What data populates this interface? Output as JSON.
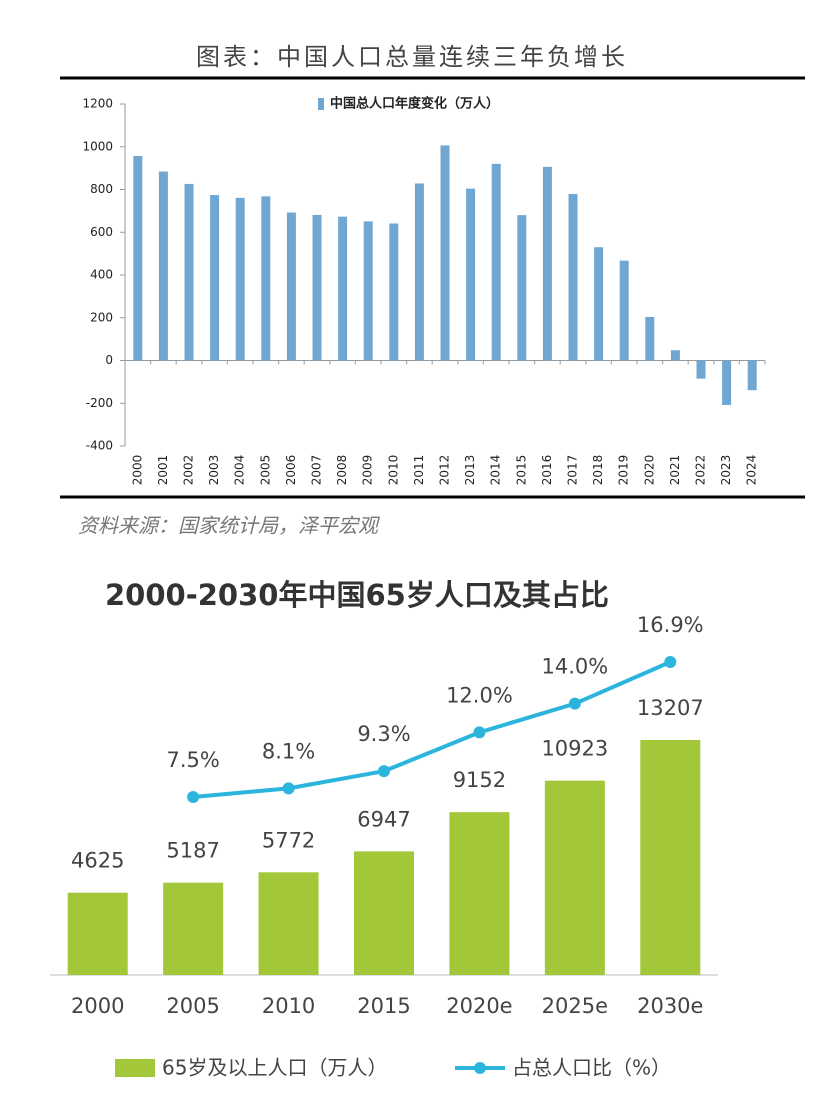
{
  "chart_data": [
    {
      "type": "bar",
      "title": "图表：中国人口总量连续三年负增长",
      "source": "资料来源：国家统计局，泽平宏观",
      "categories": [
        "2000",
        "2001",
        "2002",
        "2003",
        "2004",
        "2005",
        "2006",
        "2007",
        "2008",
        "2009",
        "2010",
        "2011",
        "2012",
        "2013",
        "2014",
        "2015",
        "2016",
        "2017",
        "2018",
        "2019",
        "2020",
        "2021",
        "2022",
        "2023",
        "2024"
      ],
      "series": [
        {
          "name": "中国总人口年度变化（万人）",
          "color": "#6fa7d2",
          "values": [
            957,
            884,
            826,
            774,
            761,
            768,
            692,
            681,
            673,
            651,
            641,
            828,
            1006,
            804,
            920,
            680,
            906,
            779,
            530,
            467,
            204,
            48,
            -85,
            -208,
            -139
          ]
        }
      ],
      "ylim": [
        -400,
        1200
      ],
      "yticks": [
        -400,
        -200,
        0,
        200,
        400,
        600,
        800,
        1000,
        1200
      ],
      "legend": "top"
    },
    {
      "type": "bar-line",
      "title": "2000-2030年中国65岁人口及其占比",
      "categories": [
        "2000",
        "2005",
        "2010",
        "2015",
        "2020e",
        "2025e",
        "2030e"
      ],
      "series": [
        {
          "name": "65岁及以上人口（万人）",
          "color": "#a2c83a",
          "type": "bar",
          "values": [
            4625,
            5187,
            5772,
            6947,
            9152,
            10923,
            13207
          ]
        },
        {
          "name": "占总人口比（%）",
          "color": "#2bb5dc",
          "type": "line",
          "axis": "y2",
          "values": [
            null,
            7.5,
            8.1,
            9.3,
            12.0,
            14.0,
            16.9
          ],
          "value_labels": [
            null,
            "7.5%",
            "8.1%",
            "9.3%",
            "12.0%",
            "14.0%",
            "16.9%"
          ]
        }
      ],
      "legend": "bottom"
    }
  ]
}
